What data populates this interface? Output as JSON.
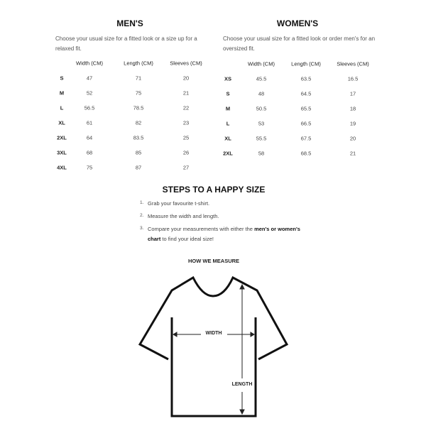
{
  "mens": {
    "title": "MEN'S",
    "description": "Choose your usual size for a fitted look or a size up for a relaxed fit.",
    "headers": [
      "",
      "Width (CM)",
      "Length (CM)",
      "Sleeves (CM)"
    ],
    "rows": [
      [
        "S",
        "47",
        "71",
        "20"
      ],
      [
        "M",
        "52",
        "75",
        "21"
      ],
      [
        "L",
        "56.5",
        "78.5",
        "22"
      ],
      [
        "XL",
        "61",
        "82",
        "23"
      ],
      [
        "2XL",
        "64",
        "83.5",
        "25"
      ],
      [
        "3XL",
        "68",
        "85",
        "26"
      ],
      [
        "4XL",
        "75",
        "87",
        "27"
      ]
    ]
  },
  "womens": {
    "title": "WOMEN'S",
    "description": "Choose your usual size for a fitted look or order men's for an oversized fit.",
    "headers": [
      "",
      "Width (CM)",
      "Length (CM)",
      "Sleeves (CM)"
    ],
    "rows": [
      [
        "XS",
        "45.5",
        "63.5",
        "16.5"
      ],
      [
        "S",
        "48",
        "64.5",
        "17"
      ],
      [
        "M",
        "50.5",
        "65.5",
        "18"
      ],
      [
        "L",
        "53",
        "66.5",
        "19"
      ],
      [
        "XL",
        "55.5",
        "67.5",
        "20"
      ],
      [
        "2XL",
        "58",
        "68.5",
        "21"
      ]
    ]
  },
  "steps": {
    "title": "STEPS TO A HAPPY SIZE",
    "items": [
      {
        "num": "1.",
        "text": "Grab your favourite t-shirt."
      },
      {
        "num": "2.",
        "text": "Measure the width and length."
      },
      {
        "num": "3.",
        "pre": "Compare your measurements with either the ",
        "bold": "men's or women's chart",
        "post": " to find your ideal size!"
      }
    ]
  },
  "measure": {
    "title": "HOW WE MEASURE",
    "width_label": "WIDTH",
    "length_label": "LENGTH",
    "icon": "t-shirt-diagram-icon"
  }
}
